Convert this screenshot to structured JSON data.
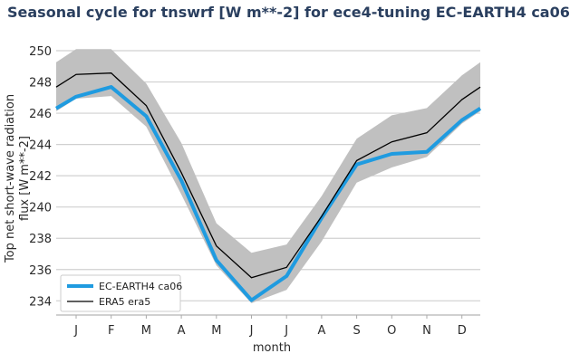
{
  "chart_data": {
    "type": "line",
    "title": "Seasonal cycle for tnswrf [W m**-2] for ece4-tuning EC-EARTH4 ca06",
    "xlabel": "month",
    "ylabel_lines": [
      "Top net short-wave radiation",
      "flux [W m**-2]"
    ],
    "categories": [
      "J",
      "F",
      "M",
      "A",
      "M",
      "J",
      "J",
      "A",
      "S",
      "O",
      "N",
      "D"
    ],
    "ylim": [
      233.5,
      250.6
    ],
    "yticks": [
      234,
      236,
      238,
      240,
      242,
      244,
      246,
      248,
      250
    ],
    "grid": "horizontal",
    "legend_position": "bottom-left",
    "series": [
      {
        "name": "EC-EARTH4 ca06",
        "color": "#1f9be0",
        "values": [
          247.06,
          247.68,
          245.81,
          241.7,
          236.6,
          234.04,
          235.58,
          239.3,
          242.72,
          243.4,
          243.53,
          245.56
        ]
      },
      {
        "name": "ERA5 era5",
        "color": "#000000",
        "values": [
          248.48,
          248.57,
          246.49,
          242.2,
          237.51,
          235.48,
          236.14,
          239.4,
          242.97,
          244.17,
          244.75,
          246.87
        ]
      }
    ],
    "band": {
      "color": "#c0c0c0",
      "upper": [
        250.1,
        250.1,
        247.9,
        244.1,
        238.96,
        237.07,
        237.6,
        240.7,
        244.37,
        245.87,
        246.33,
        248.42
      ],
      "lower": [
        246.93,
        247.1,
        245.14,
        240.8,
        236.26,
        233.85,
        234.7,
        237.8,
        241.56,
        242.53,
        243.2,
        245.33
      ]
    }
  }
}
